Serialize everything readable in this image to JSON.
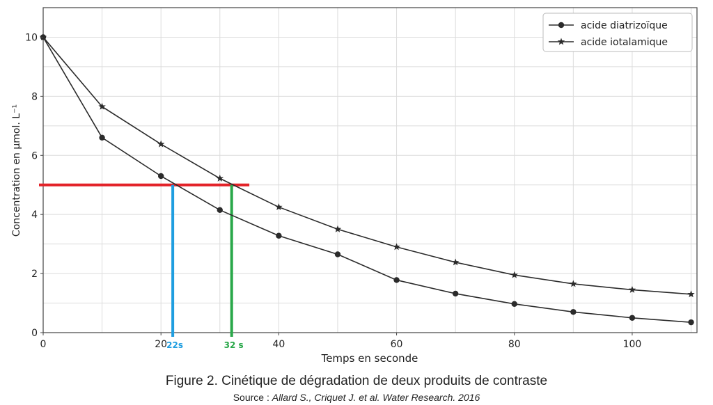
{
  "chart_data": {
    "type": "line",
    "title": "",
    "xlabel": "Temps en seconde",
    "ylabel": "Concentration en μmol. L⁻¹",
    "xlim": [
      0,
      111
    ],
    "ylim": [
      0,
      11
    ],
    "xticks": [
      "0",
      "20",
      "40",
      "60",
      "80",
      "100"
    ],
    "yticks": [
      "0",
      "2",
      "4",
      "6",
      "8",
      "10"
    ],
    "grid": true,
    "legend_position": "top-right",
    "x": [
      0,
      10,
      20,
      30,
      40,
      50,
      60,
      70,
      80,
      90,
      100,
      110
    ],
    "series": [
      {
        "name": "acide diatrizoïque",
        "marker": "circle",
        "values": [
          10.0,
          6.6,
          5.3,
          4.15,
          3.28,
          2.65,
          1.78,
          1.32,
          0.97,
          0.7,
          0.5,
          0.35
        ]
      },
      {
        "name": "acide iotalamique",
        "marker": "star",
        "values": [
          10.0,
          7.65,
          6.38,
          5.22,
          4.25,
          3.5,
          2.9,
          2.38,
          1.95,
          1.65,
          1.45,
          1.3
        ]
      }
    ],
    "annotations": [
      {
        "kind": "horizontal-line",
        "y": 5,
        "x_from": 0,
        "x_to": 35,
        "color": "#e32228"
      },
      {
        "kind": "vertical-line",
        "x": 22,
        "y_from": 0,
        "y_to": 5,
        "color": "#1f9ee0",
        "label": "22s"
      },
      {
        "kind": "vertical-line",
        "x": 32,
        "y_from": 0,
        "y_to": 5,
        "color": "#2aa84a",
        "label": "32 s"
      }
    ],
    "line_color": "#2b2b2b"
  },
  "caption": {
    "title": "Figure 2. Cinétique de dégradation de deux produits de contraste",
    "source_prefix": "Source : ",
    "source_authors": "Allard S., Criquet J. et al. Water Research. 2016"
  }
}
